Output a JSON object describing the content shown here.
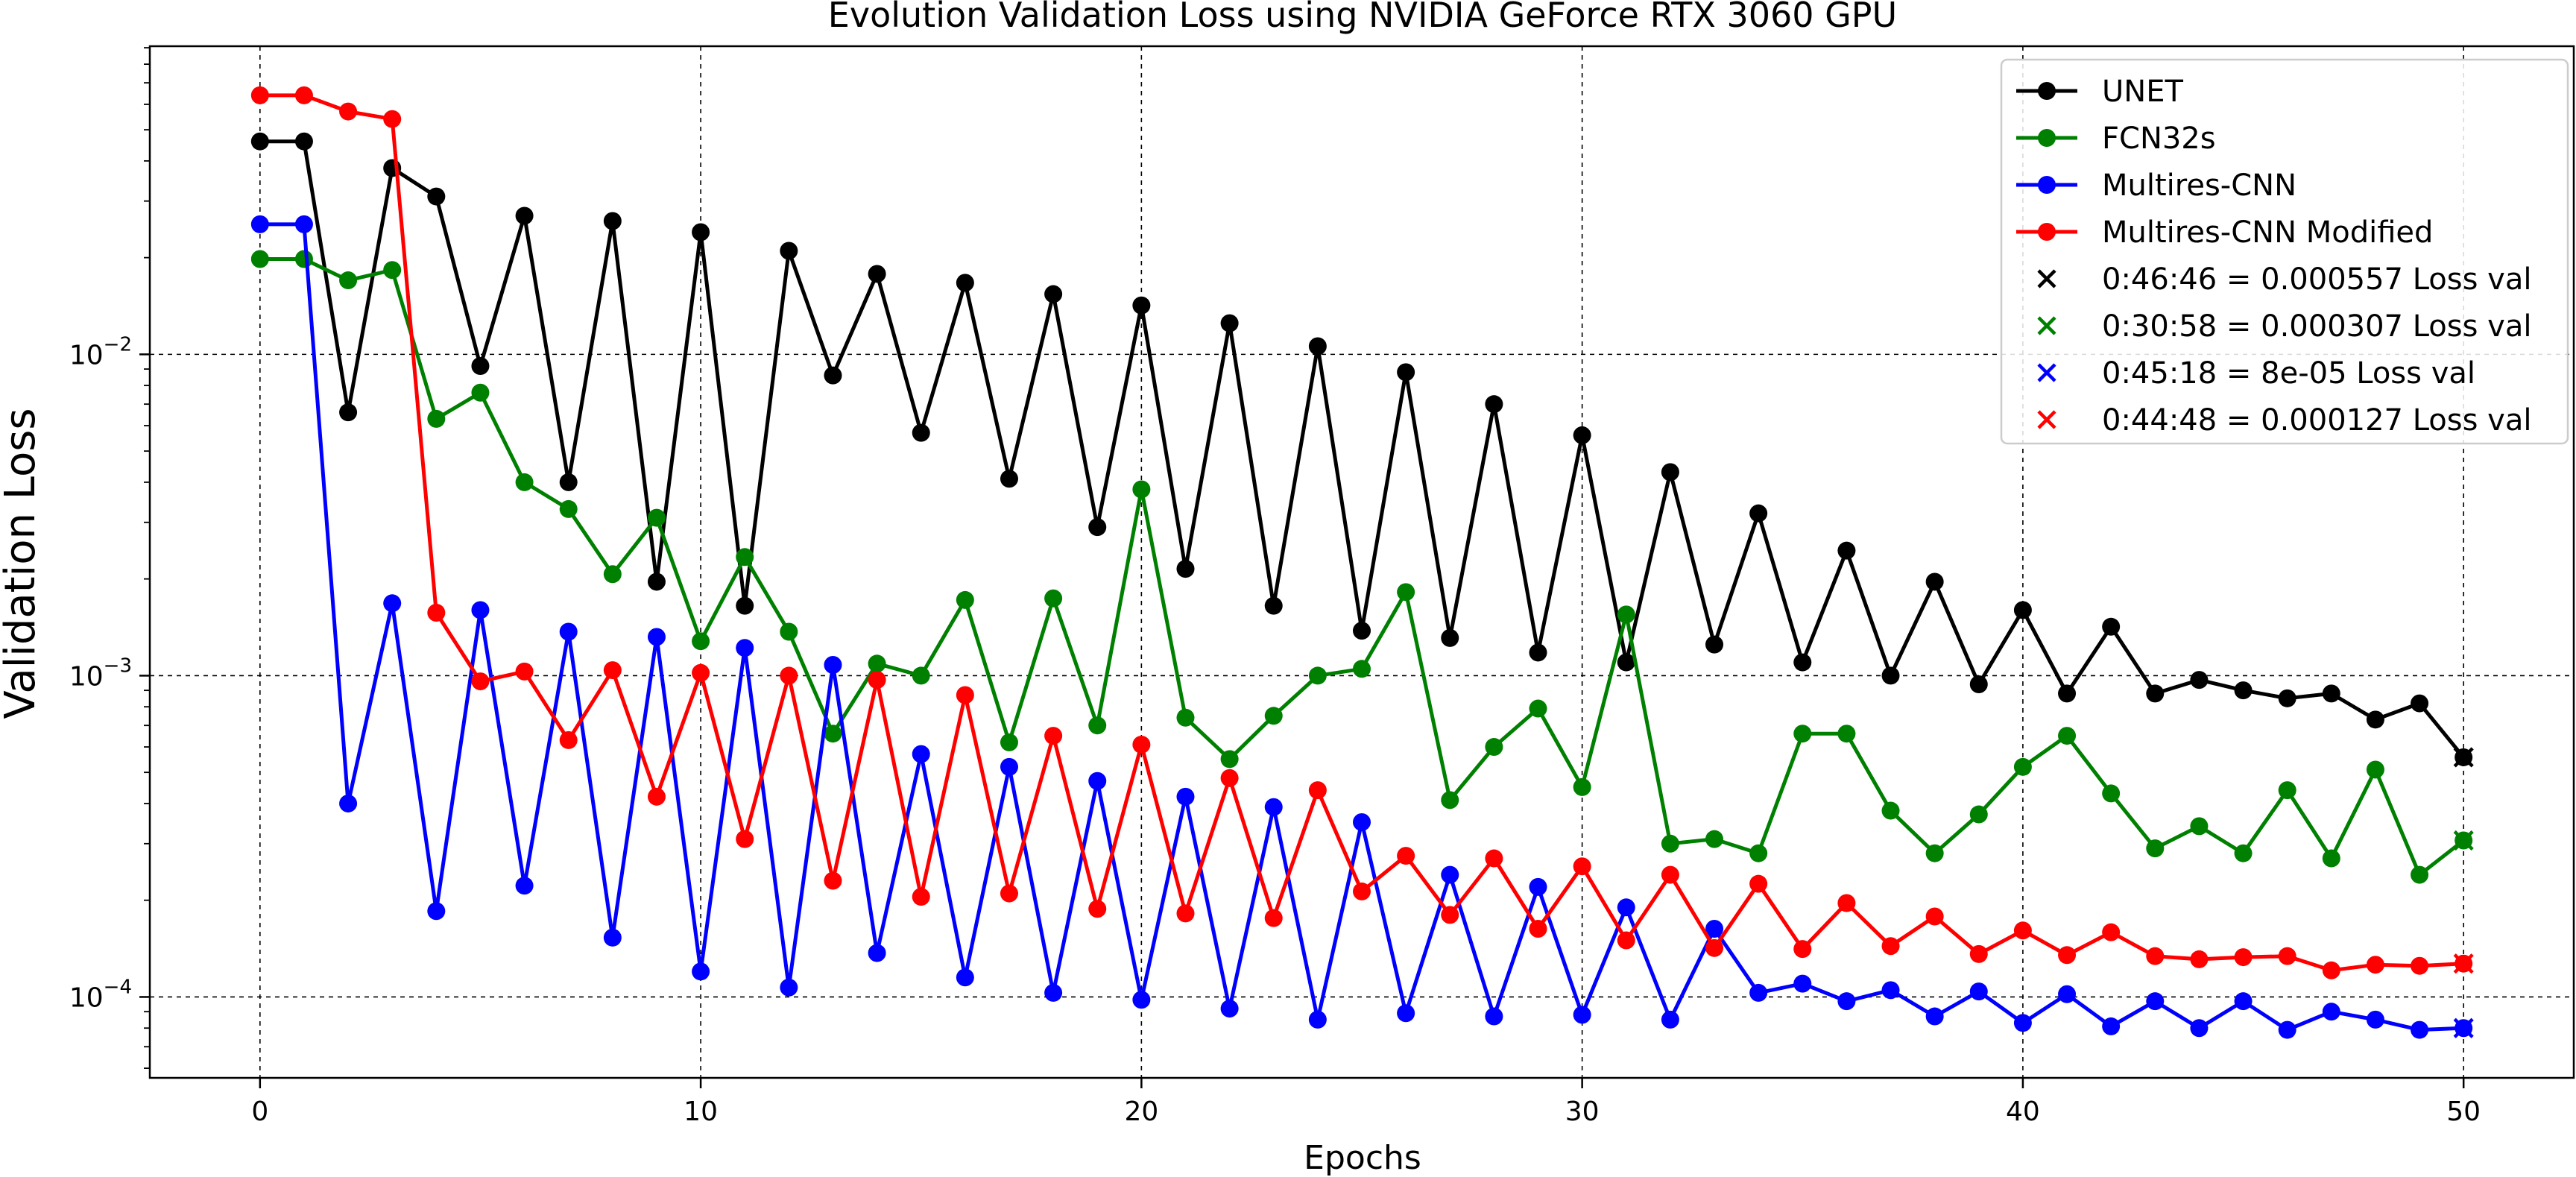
{
  "chart_data": {
    "type": "line",
    "title": "Evolution Validation Loss using NVIDIA GeForce RTX 3060 GPU",
    "xlabel": "Epochs",
    "ylabel": "Validation Loss",
    "xlim": [
      -2.5,
      52.5
    ],
    "ylim": [
      5.6e-05,
      0.091
    ],
    "yscale": "log",
    "x_ticks": [
      0,
      10,
      20,
      30,
      40,
      50
    ],
    "y_ticks": [
      {
        "value": 0.01,
        "base": "10",
        "exp": "−2"
      },
      {
        "value": 0.001,
        "base": "10",
        "exp": "−3"
      },
      {
        "value": 0.0001,
        "base": "10",
        "exp": "−4"
      }
    ],
    "grid": true,
    "legend_position": "top-right",
    "series": [
      {
        "name": "UNET",
        "color": "#000000",
        "x": [
          0,
          1,
          2,
          3,
          4,
          5,
          6,
          7,
          8,
          9,
          10,
          11,
          12,
          13,
          14,
          15,
          16,
          17,
          18,
          19,
          20,
          21,
          22,
          23,
          24,
          25,
          26,
          27,
          28,
          29,
          30,
          31,
          32,
          33,
          34,
          35,
          36,
          37,
          38,
          39,
          40,
          41,
          42,
          43,
          44,
          45,
          46,
          47,
          48,
          49,
          50
        ],
        "values": [
          0.046,
          0.046,
          0.0066,
          0.038,
          0.031,
          0.0092,
          0.027,
          0.004,
          0.026,
          0.00196,
          0.024,
          0.00165,
          0.021,
          0.0086,
          0.0178,
          0.0057,
          0.0167,
          0.0041,
          0.0154,
          0.0029,
          0.0142,
          0.00215,
          0.0125,
          0.00165,
          0.0106,
          0.00138,
          0.0088,
          0.00131,
          0.007,
          0.00118,
          0.0056,
          0.0011,
          0.0043,
          0.00125,
          0.0032,
          0.0011,
          0.00245,
          0.001,
          0.00196,
          0.00094,
          0.0016,
          0.00088,
          0.00142,
          0.00088,
          0.00097,
          0.0009,
          0.00085,
          0.00088,
          0.00073,
          0.00082,
          0.000557
        ]
      },
      {
        "name": "FCN32s",
        "color": "#008000",
        "x": [
          0,
          1,
          2,
          3,
          4,
          5,
          6,
          7,
          8,
          9,
          10,
          11,
          12,
          13,
          14,
          15,
          16,
          17,
          18,
          19,
          20,
          21,
          22,
          23,
          24,
          25,
          26,
          27,
          28,
          29,
          30,
          31,
          32,
          33,
          34,
          35,
          36,
          37,
          38,
          39,
          40,
          41,
          42,
          43,
          44,
          45,
          46,
          47,
          48,
          49,
          50
        ],
        "values": [
          0.0198,
          0.0198,
          0.017,
          0.0183,
          0.0063,
          0.0076,
          0.004,
          0.0033,
          0.00207,
          0.0031,
          0.00128,
          0.00234,
          0.00137,
          0.00066,
          0.00109,
          0.001,
          0.00172,
          0.00062,
          0.00174,
          0.0007,
          0.0038,
          0.00074,
          0.00055,
          0.00075,
          0.001,
          0.00105,
          0.00182,
          0.00041,
          0.0006,
          0.00079,
          0.00045,
          0.00155,
          0.0003,
          0.00031,
          0.00028,
          0.00066,
          0.00066,
          0.00038,
          0.00028,
          0.00037,
          0.00052,
          0.00065,
          0.00043,
          0.00029,
          0.00034,
          0.00028,
          0.00044,
          0.00027,
          0.00051,
          0.00024,
          0.000307
        ]
      },
      {
        "name": "Multires-CNN",
        "color": "#0000FF",
        "x": [
          0,
          1,
          2,
          3,
          4,
          5,
          6,
          7,
          8,
          9,
          10,
          11,
          12,
          13,
          14,
          15,
          16,
          17,
          18,
          19,
          20,
          21,
          22,
          23,
          24,
          25,
          26,
          27,
          28,
          29,
          30,
          31,
          32,
          33,
          34,
          35,
          36,
          37,
          38,
          39,
          40,
          41,
          42,
          43,
          44,
          45,
          46,
          47,
          48,
          49,
          50
        ],
        "values": [
          0.0254,
          0.0254,
          0.0004,
          0.00168,
          0.000185,
          0.0016,
          0.000222,
          0.00137,
          0.000153,
          0.00132,
          0.00012,
          0.00122,
          0.000107,
          0.00108,
          0.000137,
          0.00057,
          0.000115,
          0.00052,
          0.000103,
          0.00047,
          9.8e-05,
          0.00042,
          9.2e-05,
          0.00039,
          8.5e-05,
          0.00035,
          8.9e-05,
          0.00024,
          8.7e-05,
          0.00022,
          8.8e-05,
          0.00019,
          8.5e-05,
          0.000163,
          0.000103,
          0.00011,
          9.7e-05,
          0.000105,
          8.7e-05,
          0.000104,
          8.3e-05,
          0.000102,
          8.1e-05,
          9.7e-05,
          8e-05,
          9.7e-05,
          7.9e-05,
          9e-05,
          8.5e-05,
          7.9e-05,
          8e-05
        ]
      },
      {
        "name": "Multires-CNN Modified",
        "color": "#FF0000",
        "x": [
          0,
          1,
          2,
          3,
          4,
          5,
          6,
          7,
          8,
          9,
          10,
          11,
          12,
          13,
          14,
          15,
          16,
          17,
          18,
          19,
          20,
          21,
          22,
          23,
          24,
          25,
          26,
          27,
          28,
          29,
          30,
          31,
          32,
          33,
          34,
          35,
          36,
          37,
          38,
          39,
          40,
          41,
          42,
          43,
          44,
          45,
          46,
          47,
          48,
          49,
          50
        ],
        "values": [
          0.064,
          0.064,
          0.057,
          0.054,
          0.00157,
          0.00096,
          0.00103,
          0.00063,
          0.00104,
          0.00042,
          0.00102,
          0.00031,
          0.001,
          0.00023,
          0.00097,
          0.000205,
          0.00087,
          0.00021,
          0.00065,
          0.000188,
          0.00061,
          0.000182,
          0.00048,
          0.000176,
          0.00044,
          0.000213,
          0.000275,
          0.00018,
          0.00027,
          0.000163,
          0.000255,
          0.00015,
          0.00024,
          0.000142,
          0.000225,
          0.000141,
          0.000196,
          0.000144,
          0.000178,
          0.000136,
          0.000161,
          0.000135,
          0.000159,
          0.000134,
          0.000131,
          0.000133,
          0.000134,
          0.000121,
          0.000126,
          0.000125,
          0.000127
        ]
      }
    ],
    "final_markers": [
      {
        "label": "0:46:46 = 0.000557 Loss val",
        "color": "#000000",
        "x": 50,
        "y": 0.000557
      },
      {
        "label": "0:30:58 = 0.000307 Loss val",
        "color": "#008000",
        "x": 50,
        "y": 0.000307
      },
      {
        "label": "0:45:18 = 8e-05 Loss val",
        "color": "#0000FF",
        "x": 50,
        "y": 8e-05
      },
      {
        "label": "0:44:48 = 0.000127 Loss val",
        "color": "#FF0000",
        "x": 50,
        "y": 0.000127
      }
    ]
  }
}
